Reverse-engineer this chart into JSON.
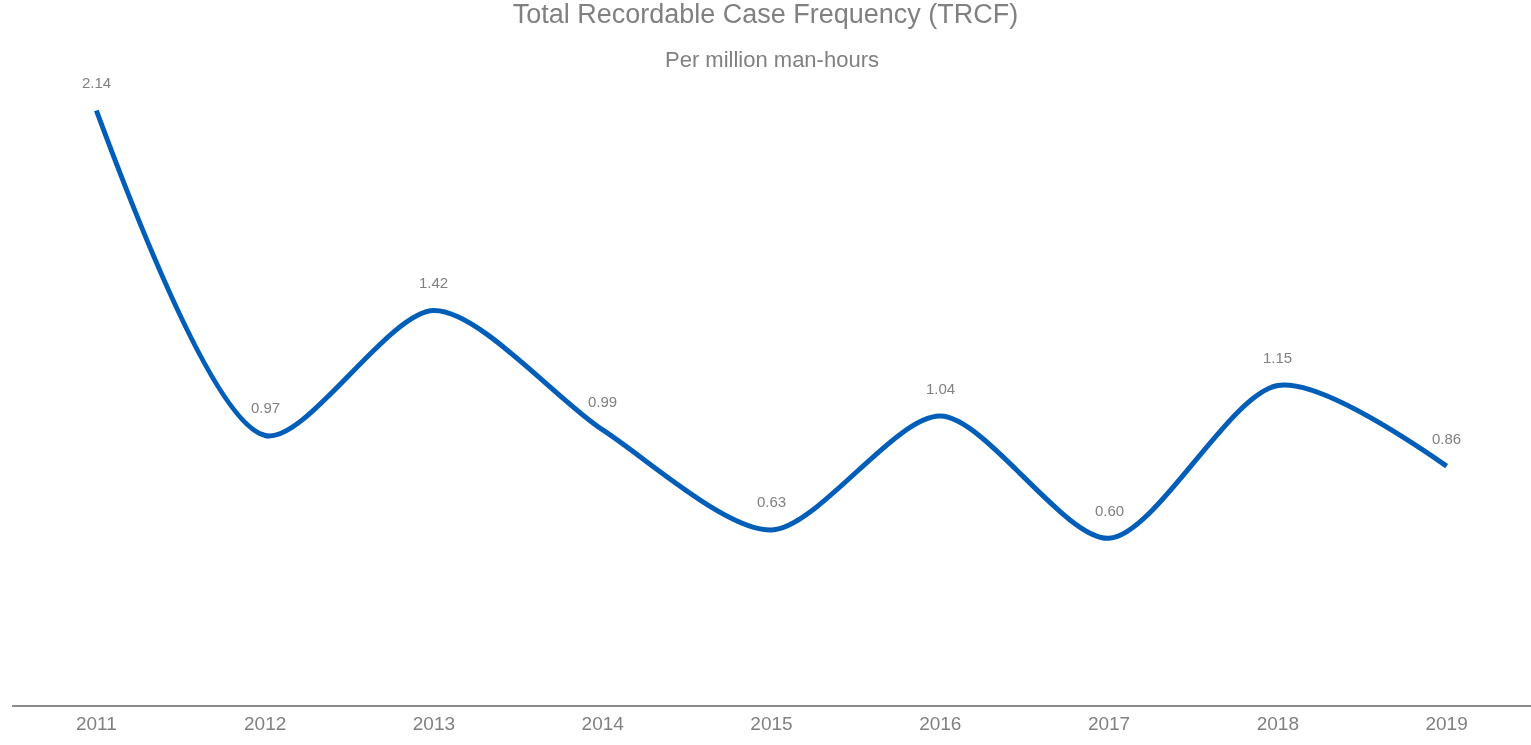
{
  "chart_data": {
    "type": "line",
    "title": "Total Recordable Case Frequency (TRCF)",
    "subtitle": "Per million man-hours",
    "categories": [
      "2011",
      "2012",
      "2013",
      "2014",
      "2015",
      "2016",
      "2017",
      "2018",
      "2019"
    ],
    "values": [
      2.14,
      0.97,
      1.42,
      0.99,
      0.63,
      1.04,
      0.6,
      1.15,
      0.86
    ],
    "value_labels": [
      "2.14",
      "0.97",
      "1.42",
      "0.99",
      "0.63",
      "1.04",
      "0.60",
      "1.15",
      "0.86"
    ],
    "color": "#005eb8",
    "tick_labels": "x",
    "marker": "none",
    "line_style": "solid"
  }
}
